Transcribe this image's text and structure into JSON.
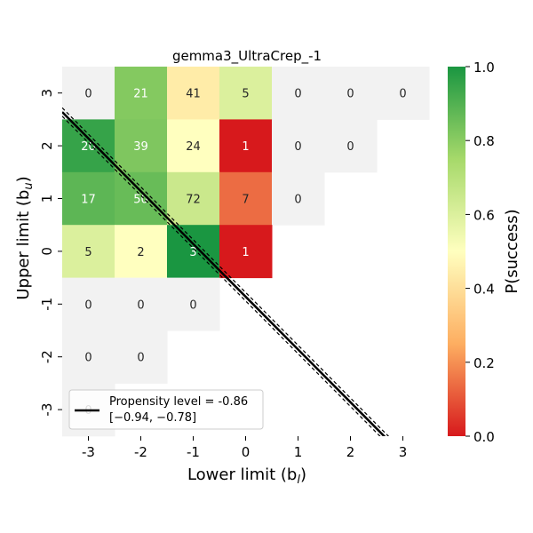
{
  "chart_data": {
    "type": "heatmap",
    "title": "gemma3_UltraCrep_-1",
    "xlabel": "Lower limit (b",
    "xlabel_sub": "l",
    "xlabel_close": ")",
    "ylabel": "Upper limit (b",
    "ylabel_sub": "u",
    "ylabel_close": ")",
    "x_ticks": [
      "-3",
      "-2",
      "-1",
      "0",
      "1",
      "2",
      "3"
    ],
    "y_ticks": [
      "3",
      "2",
      "1",
      "0",
      "-1",
      "-2",
      "-3"
    ],
    "x_values": [
      -3,
      -2,
      -1,
      0,
      1,
      2,
      3
    ],
    "y_values": [
      3,
      2,
      1,
      0,
      -1,
      -2,
      -3
    ],
    "cells": [
      {
        "x": -3,
        "y": 3,
        "count": "0",
        "p": null
      },
      {
        "x": -2,
        "y": 3,
        "count": "21",
        "p": 0.81
      },
      {
        "x": -1,
        "y": 3,
        "count": "41",
        "p": 0.44
      },
      {
        "x": 0,
        "y": 3,
        "count": "5",
        "p": 0.6
      },
      {
        "x": 1,
        "y": 3,
        "count": "0",
        "p": null
      },
      {
        "x": 2,
        "y": 3,
        "count": "0",
        "p": null
      },
      {
        "x": 3,
        "y": 3,
        "count": "0",
        "p": null
      },
      {
        "x": -3,
        "y": 2,
        "count": "20",
        "p": 0.95
      },
      {
        "x": -2,
        "y": 2,
        "count": "39",
        "p": 0.82
      },
      {
        "x": -1,
        "y": 2,
        "count": "24",
        "p": 0.5
      },
      {
        "x": 0,
        "y": 2,
        "count": "1",
        "p": 0.0
      },
      {
        "x": 1,
        "y": 2,
        "count": "0",
        "p": null
      },
      {
        "x": 2,
        "y": 2,
        "count": "0",
        "p": null
      },
      {
        "x": -3,
        "y": 1,
        "count": "17",
        "p": 0.88
      },
      {
        "x": -2,
        "y": 1,
        "count": "50",
        "p": 0.86
      },
      {
        "x": -1,
        "y": 1,
        "count": "72",
        "p": 0.65
      },
      {
        "x": 0,
        "y": 1,
        "count": "7",
        "p": 0.14
      },
      {
        "x": 1,
        "y": 1,
        "count": "0",
        "p": null
      },
      {
        "x": -3,
        "y": 0,
        "count": "5",
        "p": 0.6
      },
      {
        "x": -2,
        "y": 0,
        "count": "2",
        "p": 0.5
      },
      {
        "x": -1,
        "y": 0,
        "count": "3",
        "p": 1.0
      },
      {
        "x": 0,
        "y": 0,
        "count": "1",
        "p": 0.0
      },
      {
        "x": -3,
        "y": -1,
        "count": "0",
        "p": null
      },
      {
        "x": -2,
        "y": -1,
        "count": "0",
        "p": null
      },
      {
        "x": -1,
        "y": -1,
        "count": "0",
        "p": null
      },
      {
        "x": -3,
        "y": -2,
        "count": "0",
        "p": null
      },
      {
        "x": -2,
        "y": -2,
        "count": "0",
        "p": null
      },
      {
        "x": -3,
        "y": -3,
        "count": "0",
        "p": null
      }
    ],
    "propensity_line": {
      "level": -0.86,
      "slope": -1,
      "lower": -0.94,
      "upper": -0.78
    },
    "legend": {
      "label": "Propensity level = -0.86",
      "interval": "[−0.94, −0.78]",
      "placement": "lower-left"
    },
    "colorbar": {
      "label": "P(success)",
      "ticks": [
        "0.0",
        "0.2",
        "0.4",
        "0.6",
        "0.8",
        "1.0"
      ],
      "tick_values": [
        0.0,
        0.2,
        0.4,
        0.6,
        0.8,
        1.0
      ],
      "colors": [
        "#d7191c",
        "#fdae61",
        "#ffffbf",
        "#a6d96a",
        "#1a9641"
      ],
      "empty_cell_color": "#f2f2f2"
    }
  }
}
